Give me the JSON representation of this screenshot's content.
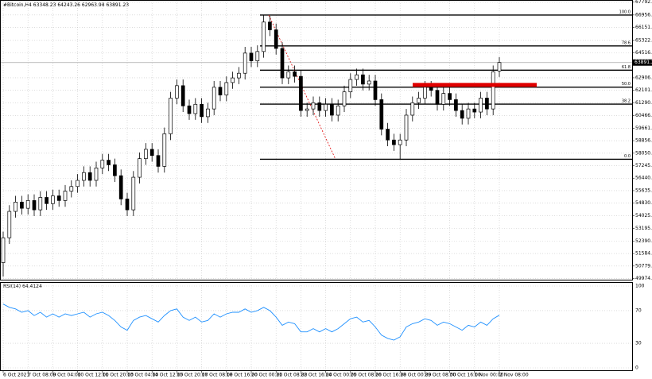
{
  "chart_data": {
    "type": "candlestick",
    "symbol": "#Bitcoin,H4",
    "categories": [
      "6 Oct 2021",
      null,
      null,
      null,
      "7 Oct 08:00",
      null,
      null,
      null,
      "9 Oct 04:00",
      null,
      null,
      null,
      "10 Oct 12:00",
      null,
      null,
      null,
      "11 Oct 20:00",
      null,
      null,
      null,
      "13 Oct 04:00",
      null,
      null,
      null,
      "14 Oct 12:00",
      null,
      null,
      null,
      "15 Oct 20:00",
      null,
      null,
      null,
      "17 Oct 08:00",
      null,
      null,
      null,
      "18 Oct 16:00",
      null,
      null,
      null,
      "20 Oct 00:00",
      null,
      null,
      null,
      "21 Oct 08:00",
      null,
      null,
      null,
      "22 Oct 16:00",
      null,
      null,
      null,
      "24 Oct 00:00",
      null,
      null,
      null,
      "25 Oct 08:00",
      null,
      null,
      null,
      "26 Oct 16:00",
      null,
      null,
      null,
      "28 Oct 00:00",
      null,
      null,
      null,
      "29 Oct 08:00",
      null,
      null,
      null,
      "30 Oct 16:00",
      null,
      null,
      null,
      "1 Nov 00:00",
      null,
      null,
      null,
      "2 Nov 08:00"
    ],
    "open": [
      51000,
      52600,
      54300,
      54900,
      54500,
      55000,
      54400,
      55200,
      54800,
      55300,
      55000,
      55600,
      55900,
      56300,
      56800,
      56300,
      57100,
      57600,
      57300,
      56600,
      55100,
      54400,
      56500,
      57700,
      58300,
      57900,
      57200,
      59300,
      61600,
      62400,
      61100,
      60600,
      61200,
      60400,
      60900,
      62300,
      61800,
      62600,
      62900,
      63200,
      64500,
      64000,
      64600,
      66500,
      66000,
      64800,
      62900,
      63300,
      63000,
      60800,
      60900,
      61300,
      60800,
      61200,
      60500,
      61100,
      62000,
      62800,
      63100,
      62500,
      62700,
      61500,
      59600,
      58900,
      58600,
      58900,
      60500,
      61300,
      61600,
      62300,
      62100,
      61200,
      61900,
      61500,
      60800,
      60300,
      60900,
      60700,
      61600,
      60900,
      63348.23
    ],
    "high": [
      53000,
      54700,
      55300,
      55300,
      55400,
      55400,
      55600,
      55600,
      55700,
      55700,
      56000,
      56300,
      56700,
      57200,
      57200,
      57500,
      58000,
      58000,
      57700,
      57000,
      55500,
      56900,
      58100,
      58700,
      58700,
      58300,
      59700,
      62000,
      62800,
      62800,
      61500,
      61600,
      61600,
      61300,
      62700,
      62700,
      63000,
      63300,
      63600,
      64900,
      64900,
      65000,
      66951,
      66900,
      66400,
      65200,
      63700,
      63700,
      63400,
      61300,
      61700,
      61700,
      61600,
      61600,
      61500,
      62400,
      63200,
      63500,
      63500,
      63100,
      63100,
      61900,
      60000,
      59300,
      59300,
      60900,
      61700,
      62000,
      62700,
      62700,
      62500,
      62300,
      62300,
      61900,
      61200,
      61300,
      61300,
      62000,
      62000,
      63700,
      64243.26
    ],
    "low": [
      50100,
      52200,
      53900,
      54100,
      54100,
      54000,
      54000,
      54400,
      54400,
      54600,
      54600,
      55200,
      55500,
      55900,
      55900,
      55900,
      56700,
      56900,
      56200,
      54700,
      54000,
      54000,
      56100,
      57300,
      57500,
      56800,
      56800,
      58900,
      61200,
      60700,
      60200,
      60200,
      60000,
      60000,
      60500,
      61400,
      61400,
      62200,
      62500,
      62800,
      63600,
      63600,
      64200,
      65600,
      64400,
      62500,
      62500,
      62600,
      60400,
      60400,
      60500,
      60400,
      60400,
      60100,
      60100,
      60700,
      61600,
      62400,
      62100,
      62100,
      61100,
      59200,
      58500,
      58200,
      57660,
      58500,
      60100,
      60900,
      61200,
      61700,
      60800,
      60800,
      61100,
      60400,
      59900,
      59900,
      60300,
      60300,
      60500,
      60500,
      62963.98
    ],
    "close": [
      52600,
      54300,
      54900,
      54500,
      55000,
      54400,
      55200,
      54800,
      55300,
      55000,
      55600,
      55900,
      56300,
      56800,
      56300,
      57100,
      57600,
      57300,
      56600,
      55100,
      54400,
      56500,
      57700,
      58300,
      57900,
      57200,
      59300,
      61600,
      62400,
      61100,
      60600,
      61200,
      60400,
      60900,
      62300,
      61800,
      62600,
      62900,
      63200,
      64500,
      64000,
      64600,
      66500,
      66000,
      64800,
      62900,
      63300,
      63000,
      60800,
      60900,
      61300,
      60800,
      61200,
      60500,
      61100,
      62000,
      62800,
      63100,
      62500,
      62700,
      61500,
      59600,
      58900,
      58600,
      58900,
      60500,
      61300,
      61600,
      62300,
      62100,
      61200,
      61900,
      61500,
      60800,
      60300,
      60900,
      60700,
      61600,
      60900,
      63300,
      63891.23
    ],
    "up_color": "#ffffff",
    "down_color": "#000000",
    "ylim": [
      49900,
      67870
    ],
    "yticks": [
      {
        "value": 67792,
        "label": "67792.00"
      },
      {
        "value": 66956,
        "label": "66956.00"
      },
      {
        "value": 66151.6,
        "label": "66151.60"
      },
      {
        "value": 65322,
        "label": "65322.00"
      },
      {
        "value": 64516.8,
        "label": "64516.80"
      },
      {
        "value": 62906.4,
        "label": "62906.40"
      },
      {
        "value": 62101.2,
        "label": "62101.20"
      },
      {
        "value": 61290,
        "label": "61290.00"
      },
      {
        "value": 60466.4,
        "label": "60466.40"
      },
      {
        "value": 59661.6,
        "label": "59661.60"
      },
      {
        "value": 58856,
        "label": "58856.00"
      },
      {
        "value": 58050.8,
        "label": "58050.80"
      },
      {
        "value": 57245.6,
        "label": "57245.60"
      },
      {
        "value": 56440.4,
        "label": "56440.40"
      },
      {
        "value": 55635.2,
        "label": "55635.20"
      },
      {
        "value": 54830,
        "label": "54830.00"
      },
      {
        "value": 54025,
        "label": "54025.00"
      },
      {
        "value": 53195.2,
        "label": "53195.20"
      },
      {
        "value": 52390,
        "label": "52390.00"
      },
      {
        "value": 51584.8,
        "label": "51584.80"
      },
      {
        "value": 50779.6,
        "label": "50779.60"
      },
      {
        "value": 49974.4,
        "label": "49974.40"
      }
    ],
    "grid": true,
    "fib": {
      "high": 66951,
      "low": 57660,
      "color": "#000000",
      "levels": [
        {
          "value": 100,
          "label": "100.0"
        },
        78.6,
        61.8,
        {
          "value": 50,
          "label": "50.0"
        },
        38.2,
        {
          "value": 0,
          "label": "0.0"
        }
      ]
    },
    "resistance": 62450,
    "resistance_color": "#e00000",
    "indicator": {
      "name": "RSI(14)",
      "color": "#1e90ff",
      "ylim": [
        0,
        100
      ],
      "yticks": [
        100,
        70,
        30,
        0
      ],
      "values": [
        78,
        74,
        72,
        68,
        70,
        64,
        68,
        62,
        66,
        62,
        66,
        64,
        66,
        68,
        62,
        66,
        68,
        64,
        58,
        50,
        46,
        58,
        62,
        64,
        60,
        56,
        64,
        70,
        72,
        62,
        58,
        62,
        56,
        58,
        66,
        62,
        66,
        68,
        68,
        72,
        68,
        70,
        74,
        70,
        62,
        52,
        56,
        54,
        44,
        44,
        48,
        44,
        48,
        44,
        48,
        54,
        60,
        62,
        56,
        58,
        50,
        40,
        36,
        34,
        38,
        50,
        54,
        56,
        60,
        58,
        52,
        56,
        54,
        50,
        46,
        52,
        50,
        56,
        52,
        60,
        64.4124
      ]
    }
  }
}
